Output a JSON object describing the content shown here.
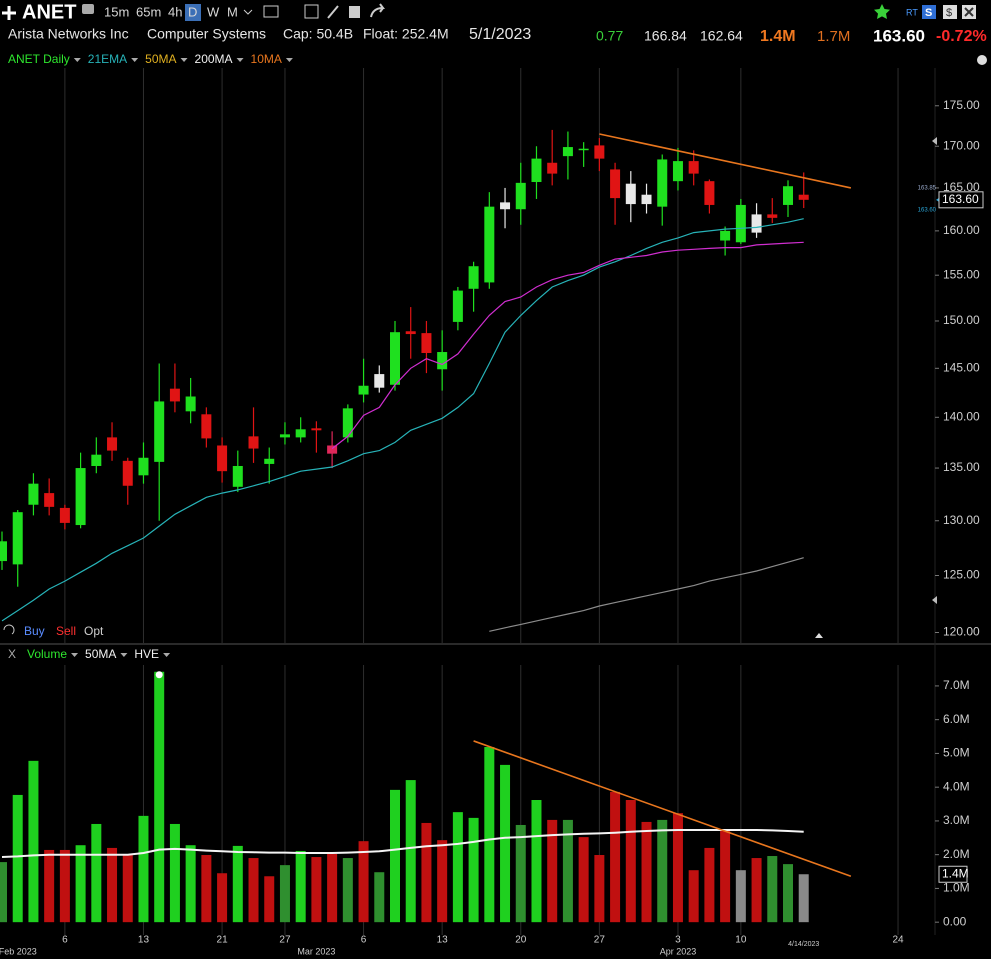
{
  "header": {
    "symbol": "ANET",
    "timeframes": [
      "15m",
      "65m",
      "4h",
      "D",
      "W",
      "M"
    ],
    "badges": [
      "RT",
      "S",
      "$"
    ],
    "company": "Arista Networks Inc",
    "sector": "Computer Systems",
    "cap": "Cap: 50.4B",
    "float": "Float: 252.4M",
    "date": "5/1/2023",
    "change": "0.77",
    "high": "166.84",
    "low": "162.64",
    "volume": "1.4M",
    "avg_volume": "1.7M",
    "last": "163.60",
    "pct_change": "-0.72%"
  },
  "trade_buttons": [
    "Buy",
    "Sell",
    "Opt"
  ],
  "chart_data": [
    {
      "type": "candlestick",
      "title": "ANET Daily",
      "title_color": "#2ee62e",
      "log_scale": true,
      "grid": "x",
      "x": [
        "2023-01-31",
        "2023-02-01",
        "2023-02-02",
        "2023-02-03",
        "2023-02-06",
        "2023-02-07",
        "2023-02-08",
        "2023-02-09",
        "2023-02-10",
        "2023-02-13",
        "2023-02-14",
        "2023-02-15",
        "2023-02-16",
        "2023-02-17",
        "2023-02-21",
        "2023-02-22",
        "2023-02-23",
        "2023-02-24",
        "2023-02-27",
        "2023-02-28",
        "2023-03-01",
        "2023-03-02",
        "2023-03-03",
        "2023-03-06",
        "2023-03-07",
        "2023-03-08",
        "2023-03-09",
        "2023-03-10",
        "2023-03-13",
        "2023-03-14",
        "2023-03-15",
        "2023-03-16",
        "2023-03-17",
        "2023-03-20",
        "2023-03-21",
        "2023-03-22",
        "2023-03-23",
        "2023-03-24",
        "2023-03-27",
        "2023-03-28",
        "2023-03-29",
        "2023-03-30",
        "2023-03-31",
        "2023-04-03",
        "2023-04-04",
        "2023-04-05",
        "2023-04-06",
        "2023-04-10",
        "2023-04-11",
        "2023-04-12",
        "2023-04-13",
        "2023-04-14"
      ],
      "open": [
        126.3,
        126.0,
        131.5,
        132.6,
        131.2,
        129.6,
        135.2,
        138.0,
        135.7,
        134.3,
        135.6,
        142.9,
        140.6,
        140.3,
        137.2,
        133.2,
        138.1,
        135.4,
        138.0,
        138.0,
        138.9,
        137.2,
        138.0,
        142.3,
        143.0,
        143.3,
        148.9,
        148.7,
        144.9,
        149.9,
        153.5,
        154.2,
        162.5,
        162.5,
        165.7,
        168.0,
        168.8,
        169.6,
        170.1,
        167.2,
        163.1,
        163.1,
        162.8,
        165.8,
        168.2,
        165.8,
        158.9,
        158.7,
        159.8,
        161.9,
        163.0,
        164.2
      ],
      "high": [
        129.0,
        131.0,
        134.5,
        134.0,
        131.5,
        136.5,
        138.0,
        139.5,
        136.0,
        137.5,
        145.5,
        145.5,
        144.0,
        141.0,
        138.0,
        136.7,
        141.0,
        137.0,
        139.5,
        140.0,
        139.6,
        138.6,
        141.3,
        146.0,
        145.3,
        150.0,
        151.5,
        150.0,
        149.0,
        153.7,
        156.5,
        164.5,
        165.0,
        168.0,
        170.0,
        172.0,
        171.8,
        170.5,
        171.0,
        168.0,
        167.0,
        165.5,
        169.0,
        169.8,
        169.5,
        166.0,
        160.5,
        163.7,
        163.2,
        163.8,
        165.9,
        166.84
      ],
      "low": [
        125.5,
        124.0,
        130.5,
        130.5,
        129.2,
        129.3,
        134.5,
        135.7,
        131.5,
        133.5,
        130.0,
        140.5,
        139.4,
        137.0,
        133.6,
        132.7,
        135.5,
        133.5,
        137.3,
        137.5,
        136.5,
        135.0,
        137.5,
        141.5,
        142.5,
        142.7,
        146.0,
        144.5,
        142.7,
        149.0,
        151.0,
        153.5,
        160.3,
        160.7,
        163.7,
        165.3,
        166.0,
        167.5,
        167.0,
        160.7,
        161.0,
        162.0,
        160.6,
        164.7,
        165.3,
        162.0,
        157.2,
        158.5,
        159.2,
        160.9,
        161.6,
        162.64
      ],
      "close": [
        128.1,
        130.8,
        133.5,
        131.3,
        129.8,
        135.0,
        136.3,
        136.7,
        133.3,
        136.0,
        141.6,
        141.6,
        142.1,
        137.9,
        134.7,
        135.2,
        136.9,
        135.9,
        138.3,
        138.8,
        138.7,
        136.4,
        140.9,
        143.2,
        144.4,
        148.8,
        148.6,
        146.6,
        146.7,
        153.3,
        156.0,
        162.8,
        163.3,
        165.6,
        168.5,
        166.7,
        169.9,
        169.7,
        168.5,
        163.8,
        165.5,
        164.2,
        168.4,
        168.2,
        166.7,
        163.0,
        160.0,
        163.0,
        161.9,
        161.5,
        165.2,
        163.6
      ],
      "colors": [
        "#1fe01f",
        "#1fe01f",
        "#1fe01f",
        "#e01414",
        "#e01414",
        "#1fe01f",
        "#1fe01f",
        "#e01414",
        "#e01414",
        "#1fe01f",
        "#1fe01f",
        "#e01414",
        "#1fe01f",
        "#e01414",
        "#e01414",
        "#1fe01f",
        "#e01414",
        "#1fe01f",
        "#1fe01f",
        "#1fe01f",
        "#e01414",
        "#e0285a",
        "#1fe01f",
        "#1fe01f",
        "#e8e8e8",
        "#1fe01f",
        "#e01414",
        "#e01414",
        "#1fe01f",
        "#1fe01f",
        "#1fe01f",
        "#1fe01f",
        "#e8e8e8",
        "#1fe01f",
        "#1fe01f",
        "#e01414",
        "#1fe01f",
        "#1fe01f",
        "#e01414",
        "#e01414",
        "#e8e8e8",
        "#e8e8e8",
        "#1fe01f",
        "#1fe01f",
        "#e01414",
        "#e01414",
        "#1fe01f",
        "#1fe01f",
        "#e8e8e8",
        "#e01414",
        "#1fe01f",
        "#e01414"
      ],
      "series": [
        {
          "name": "21EMA",
          "color": "#27b3b8",
          "label_color": "#27b3b8",
          "values": [
            121.0,
            121.9,
            122.8,
            123.8,
            124.5,
            125.3,
            126.1,
            127.0,
            127.7,
            128.4,
            129.5,
            130.6,
            131.4,
            132.2,
            132.6,
            132.9,
            133.3,
            133.7,
            134.2,
            134.7,
            134.9,
            135.1,
            135.7,
            136.4,
            136.7,
            137.5,
            138.7,
            139.3,
            139.9,
            141.0,
            142.4,
            145.5,
            148.8,
            150.6,
            152.2,
            153.7,
            154.4,
            155.0,
            155.9,
            156.5,
            157.2,
            158.0,
            158.7,
            159.2,
            159.8,
            160.0,
            160.2,
            160.3,
            160.4,
            160.7,
            161.0,
            161.4
          ]
        },
        {
          "name": "50MA",
          "color": "#d02ed0",
          "label_color": "#e0b020",
          "values": [
            null,
            null,
            null,
            null,
            null,
            null,
            null,
            null,
            null,
            null,
            null,
            null,
            null,
            null,
            null,
            null,
            null,
            null,
            null,
            null,
            null,
            136.9,
            138.1,
            140.2,
            141.0,
            143.3,
            145.0,
            146.0,
            145.4,
            146.5,
            148.6,
            150.6,
            152.1,
            152.6,
            153.7,
            154.5,
            155.0,
            155.3,
            156.1,
            156.8,
            157.0,
            157.2,
            157.6,
            157.8,
            157.9,
            158.0,
            158.1,
            158.1,
            158.4,
            158.5,
            158.6,
            158.7
          ]
        },
        {
          "name": "200MA",
          "color": "#8c8c8c",
          "label_color": "#f0f0f0",
          "values": [
            null,
            null,
            null,
            null,
            null,
            null,
            null,
            null,
            null,
            null,
            null,
            null,
            null,
            null,
            null,
            null,
            null,
            null,
            null,
            null,
            null,
            null,
            null,
            null,
            null,
            null,
            null,
            null,
            null,
            null,
            null,
            120.1,
            120.4,
            120.7,
            121.0,
            121.3,
            121.6,
            121.9,
            122.3,
            122.6,
            122.9,
            123.2,
            123.5,
            123.8,
            124.1,
            124.5,
            124.8,
            125.1,
            125.4,
            125.8,
            126.2,
            126.6
          ]
        },
        {
          "name": "10MA",
          "color": "#e8761e",
          "label_color": "#e8761e",
          "values": [
            null,
            null,
            null,
            null,
            null,
            null,
            null,
            null,
            null,
            null,
            null,
            null,
            null,
            null,
            null,
            null,
            null,
            null,
            null,
            null,
            null,
            null,
            null,
            null,
            null,
            null,
            null,
            null,
            null,
            null,
            null,
            null,
            null,
            null,
            null,
            null,
            null,
            null,
            null,
            null,
            null,
            null,
            null,
            null,
            null,
            null,
            null,
            null,
            null,
            null,
            null,
            null
          ]
        }
      ],
      "trendlines": [
        {
          "x": [
            "2023-03-27",
            "2023-04-19"
          ],
          "values": [
            171.5,
            165.0
          ],
          "color": "#e8761e"
        }
      ],
      "ylim": [
        119.1,
        179.8
      ],
      "yticks": [
        {
          "value": 120,
          "label": "120.00"
        },
        {
          "value": 125,
          "label": "125.00"
        },
        {
          "value": 130,
          "label": "130.00"
        },
        {
          "value": 135,
          "label": "135.00"
        },
        {
          "value": 140,
          "label": "140.00"
        },
        {
          "value": 145,
          "label": "145.00"
        },
        {
          "value": 150,
          "label": "150.00"
        },
        {
          "value": 155,
          "label": "155.00"
        },
        {
          "value": 160,
          "label": "160.00"
        },
        {
          "value": 165,
          "label": "165.00"
        },
        {
          "value": 170,
          "label": "170.00"
        },
        {
          "value": 175,
          "label": "175.00"
        }
      ],
      "last_price": {
        "value": 163.6,
        "label": "163.60"
      },
      "price_flags": [
        {
          "value": 163.85,
          "label": "163.85"
        },
        {
          "value": 163.6,
          "label": "163.60"
        }
      ],
      "xticks": [
        {
          "value": "2023-02-06",
          "label": "6"
        },
        {
          "value": "2023-02-13",
          "label": "13"
        },
        {
          "value": "2023-02-21",
          "label": "21"
        },
        {
          "value": "2023-02-27",
          "label": "27"
        },
        {
          "value": "2023-03-06",
          "label": "6"
        },
        {
          "value": "2023-03-13",
          "label": "13"
        },
        {
          "value": "2023-03-20",
          "label": "20"
        },
        {
          "value": "2023-03-27",
          "label": "27"
        },
        {
          "value": "2023-04-03",
          "label": "3"
        },
        {
          "value": "2023-04-10",
          "label": "10"
        },
        {
          "value": "2023-04-24",
          "label": "24"
        }
      ],
      "month_ticks": [
        {
          "value": "2023-02-01",
          "label": "Feb 2023"
        },
        {
          "value": "2023-03-01",
          "label": "Mar 2023"
        },
        {
          "value": "2023-04-03",
          "label": "Apr 2023"
        }
      ],
      "cursor_tick": {
        "value": "2023-04-14",
        "label": "4/14/2023"
      }
    },
    {
      "type": "bar",
      "title": "Volume",
      "title_color": "#2ee62e",
      "close_button": "X",
      "indicators": [
        "HVE"
      ],
      "values": [
        1780000,
        3770000,
        4780000,
        2140000,
        2140000,
        2280000,
        2910000,
        2200000,
        1990000,
        3150000,
        7420000,
        2910000,
        2280000,
        1990000,
        1450000,
        2260000,
        1900000,
        1360000,
        1690000,
        2110000,
        1930000,
        2020000,
        1900000,
        2400000,
        1480000,
        3920000,
        4210000,
        2940000,
        2430000,
        3260000,
        3090000,
        5190000,
        4660000,
        2880000,
        3620000,
        3030000,
        3030000,
        2520000,
        1990000,
        3860000,
        3620000,
        2970000,
        3030000,
        3230000,
        1540000,
        2200000,
        2730000,
        1540000,
        1900000,
        1960000,
        1720000,
        1420000
      ],
      "colors": [
        "#2f8f2f",
        "#1fd01f",
        "#1fd01f",
        "#c01010",
        "#c01010",
        "#1fd01f",
        "#1fd01f",
        "#c01010",
        "#c01010",
        "#1fd01f",
        "#1fd01f",
        "#1fd01f",
        "#1fd01f",
        "#c01010",
        "#c01010",
        "#1fd01f",
        "#c01010",
        "#c01010",
        "#2f8f2f",
        "#1fd01f",
        "#c01010",
        "#c01010",
        "#2f8f2f",
        "#c01010",
        "#2f8f2f",
        "#1fd01f",
        "#1fd01f",
        "#c01010",
        "#c01010",
        "#1fd01f",
        "#1fd01f",
        "#1fd01f",
        "#1fd01f",
        "#2f8f2f",
        "#1fd01f",
        "#c01010",
        "#2f8f2f",
        "#c01010",
        "#c01010",
        "#c01010",
        "#c01010",
        "#c01010",
        "#2f8f2f",
        "#c01010",
        "#c01010",
        "#c01010",
        "#c01010",
        "#8a8a8a",
        "#c01010",
        "#2f8f2f",
        "#2f8f2f",
        "#8a8a8a"
      ],
      "series": [
        {
          "name": "50MA",
          "color": "#f4f4f4",
          "label_color": "#f0f0f0",
          "values": [
            1930000,
            1950000,
            1980000,
            2000000,
            2000000,
            2000000,
            2000000,
            2000000,
            2000000,
            2050000,
            2150000,
            2170000,
            2150000,
            2120000,
            2100000,
            2080000,
            2070000,
            2060000,
            2060000,
            2050000,
            2050000,
            2050000,
            2060000,
            2080000,
            2100000,
            2150000,
            2200000,
            2250000,
            2280000,
            2320000,
            2380000,
            2450000,
            2500000,
            2520000,
            2550000,
            2580000,
            2600000,
            2620000,
            2630000,
            2650000,
            2680000,
            2700000,
            2720000,
            2730000,
            2730000,
            2730000,
            2730000,
            2730000,
            2730000,
            2720000,
            2700000,
            2680000
          ]
        }
      ],
      "trendlines": [
        {
          "x": [
            "2023-03-15",
            "2023-04-19"
          ],
          "values": [
            5370000,
            1360000
          ],
          "color": "#e8761e"
        }
      ],
      "ylim": [
        -380000,
        7620000
      ],
      "yticks": [
        {
          "value": 0,
          "label": "0.00"
        },
        {
          "value": 1000000,
          "label": "1.0M"
        },
        {
          "value": 2000000,
          "label": "2.0M"
        },
        {
          "value": 3000000,
          "label": "3.0M"
        },
        {
          "value": 4000000,
          "label": "4.0M"
        },
        {
          "value": 5000000,
          "label": "5.0M"
        },
        {
          "value": 6000000,
          "label": "6.0M"
        },
        {
          "value": 7000000,
          "label": "7.0M"
        }
      ],
      "last_label": {
        "value": 1420000,
        "label": "1.4M"
      }
    }
  ]
}
